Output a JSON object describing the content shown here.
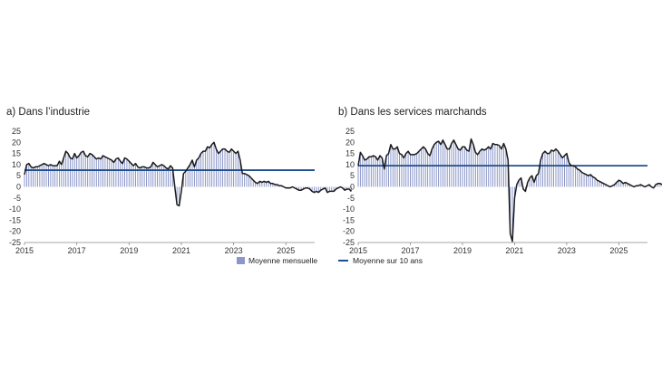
{
  "colors": {
    "bars": "#7f8bc2",
    "line": "#1a1a1a",
    "average": "#1f4e8c",
    "grid": "#d0d0d0",
    "legend_swatch": "#8c96cc"
  },
  "legend": {
    "monthly": "Moyenne mensuelle",
    "ten_year": "Moyenne sur 10 ans"
  },
  "chart_data": [
    {
      "type": "bar",
      "panel": "a",
      "title": "a)  Dans l’industrie",
      "xlabel": "",
      "ylabel": "",
      "x_range": [
        2015,
        2026.1
      ],
      "ylim": [
        -25,
        25
      ],
      "y_ticks": [
        25,
        20,
        15,
        10,
        5,
        0,
        -5,
        -10,
        -15,
        -20,
        -25
      ],
      "x_ticks": [
        "2015",
        "2017",
        "2019",
        "2021",
        "2023",
        "2025"
      ],
      "x_tick_values": [
        2015,
        2017,
        2019,
        2021,
        2023,
        2025
      ],
      "start": 2015.0,
      "step_months": 1,
      "ten_year_average": 7.5,
      "legend_entry": "Moyenne mensuelle",
      "values": [
        5.5,
        10,
        10.5,
        9,
        8.5,
        9,
        9,
        9.5,
        10,
        10.5,
        10,
        9.5,
        10,
        9.5,
        9.5,
        9.5,
        11.5,
        10,
        13,
        16,
        15,
        13,
        12.5,
        15,
        13,
        14,
        15.5,
        16,
        14,
        13.5,
        15,
        14.5,
        13.5,
        12.5,
        13,
        12.5,
        14,
        13.5,
        13,
        12.5,
        12,
        11,
        12.5,
        13,
        11.5,
        10.5,
        13,
        12.5,
        11.5,
        10.5,
        9.5,
        10.5,
        9,
        8.5,
        9,
        9,
        8.5,
        8.5,
        9,
        11,
        10,
        9,
        9.5,
        10,
        9.5,
        8.5,
        8,
        9.5,
        8.5,
        0,
        -8,
        -8.5,
        -2,
        6,
        7,
        8.5,
        10,
        12,
        9,
        12,
        13,
        15,
        16,
        16,
        18,
        17.5,
        19,
        20,
        17,
        15,
        16,
        17,
        17,
        16,
        15.5,
        17,
        16,
        15,
        16,
        12,
        6,
        6,
        5.5,
        5,
        4,
        3,
        2,
        1.5,
        2.5,
        2,
        2.5,
        2,
        2.5,
        1.5,
        1.5,
        1,
        1,
        0.5,
        0.5,
        0,
        -0.5,
        -0.5,
        -0.5,
        0,
        -0.5,
        -1,
        -1.5,
        -1.5,
        -1,
        -0.5,
        -0.5,
        -1,
        -2,
        -2.5,
        -2,
        -2.5,
        -1.5,
        -1,
        -0.5,
        -2.5,
        -2,
        -2,
        -2,
        -1,
        -0.5,
        0,
        -0.5,
        -1.5,
        -1,
        -1,
        -2
      ]
    },
    {
      "type": "bar",
      "panel": "b",
      "title": "b)  Dans les services marchands",
      "xlabel": "",
      "ylabel": "",
      "x_range": [
        2015,
        2026.1
      ],
      "ylim": [
        -25,
        25
      ],
      "y_ticks": [
        25,
        20,
        15,
        10,
        5,
        0,
        -5,
        -10,
        -15,
        -20,
        -25
      ],
      "x_ticks": [
        "2015",
        "2017",
        "2019",
        "2021",
        "2023",
        "2025"
      ],
      "x_tick_values": [
        2015,
        2017,
        2019,
        2021,
        2023,
        2025
      ],
      "start": 2015.0,
      "step_months": 1,
      "ten_year_average": 9.5,
      "legend_entry": "Moyenne sur 10 ans",
      "values": [
        9.5,
        15.5,
        14,
        12,
        12.5,
        13.5,
        13.5,
        14,
        13.5,
        12,
        14,
        13,
        8,
        14,
        15,
        19,
        17,
        17,
        18,
        15,
        14.5,
        13,
        15,
        16,
        14.5,
        14.5,
        14.5,
        15,
        16,
        17,
        18,
        17,
        15,
        14,
        17,
        19,
        20,
        20.5,
        19,
        21,
        19,
        17,
        17,
        19.5,
        21,
        19,
        17,
        16.5,
        18,
        18,
        16.5,
        16,
        21.5,
        19,
        15.5,
        14.5,
        16,
        17,
        16.5,
        17,
        18,
        17,
        19.5,
        19,
        19,
        18.5,
        17,
        19.5,
        17,
        12,
        -21,
        -24.5,
        -5,
        1,
        3,
        4,
        -1,
        -2,
        2,
        4,
        5,
        2,
        5,
        6,
        12,
        15,
        16,
        15,
        15,
        16.5,
        16,
        17,
        16,
        14.5,
        13,
        14,
        15,
        11,
        9.5,
        9.5,
        9,
        8,
        7.5,
        6.5,
        6,
        5.5,
        5,
        5.5,
        4.5,
        4,
        3,
        2.5,
        2,
        1.5,
        1,
        0.5,
        0,
        0.5,
        1,
        2,
        3,
        2.5,
        1.5,
        2,
        1.5,
        1,
        0.5,
        0,
        0.5,
        0.5,
        1,
        0.5,
        0,
        0.5,
        1,
        0,
        -0.5,
        1,
        1.5,
        1.5,
        1,
        1,
        0.5,
        1,
        0.5,
        0.5,
        1,
        1.5,
        1,
        0.5,
        0,
        1,
        0.5,
        0.5
      ]
    }
  ]
}
